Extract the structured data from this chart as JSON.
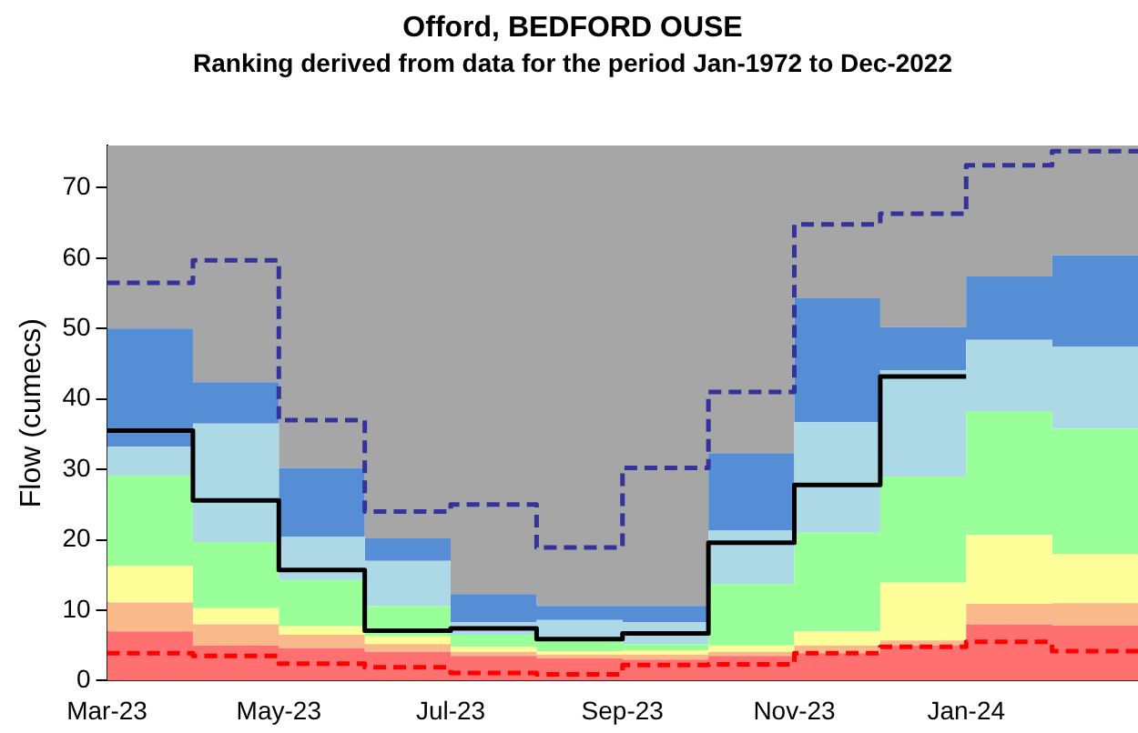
{
  "chart_data": {
    "type": "area",
    "title": "Offord, BEDFORD OUSE",
    "subtitle": "Ranking derived from data for the period Jan-1972 to Dec-2022",
    "ylabel": "Flow (cumecs)",
    "x": [
      "2023-03",
      "2023-04",
      "2023-05",
      "2023-06",
      "2023-07",
      "2023-08",
      "2023-09",
      "2023-10",
      "2023-11",
      "2023-12",
      "2024-01",
      "2024-02"
    ],
    "xlim": [
      "2023-03",
      "2024-03"
    ],
    "xticks": [
      {
        "value": "2023-03",
        "label": "Mar-23"
      },
      {
        "value": "2023-05",
        "label": "May-23"
      },
      {
        "value": "2023-07",
        "label": "Jul-23"
      },
      {
        "value": "2023-09",
        "label": "Sep-23"
      },
      {
        "value": "2023-11",
        "label": "Nov-23"
      },
      {
        "value": "2024-01",
        "label": "Jan-24"
      }
    ],
    "ylim": [
      0,
      76
    ],
    "yticks": [
      0,
      10,
      20,
      30,
      40,
      50,
      60,
      70
    ],
    "stacked": true,
    "grid": false,
    "legend": false,
    "marker": "none",
    "series": [
      {
        "color": "#ff7070",
        "values": [
          7.0,
          5.0,
          4.6,
          4.1,
          3.5,
          3.2,
          3.0,
          3.5,
          3.9,
          5.0,
          8.0,
          7.8
        ]
      },
      {
        "color": "#f9b98a",
        "values": [
          4.1,
          3.0,
          1.9,
          1.1,
          0.6,
          0.5,
          0.7,
          0.6,
          1.1,
          0.7,
          2.9,
          3.2
        ]
      },
      {
        "color": "#ffff99",
        "values": [
          5.2,
          2.3,
          1.2,
          1.1,
          0.7,
          0.5,
          0.6,
          0.9,
          2.0,
          8.2,
          9.8,
          7.0
        ]
      },
      {
        "color": "#99ff99",
        "values": [
          12.8,
          9.4,
          6.6,
          4.3,
          1.7,
          1.9,
          0.9,
          8.7,
          14.0,
          15.1,
          17.6,
          17.8
        ]
      },
      {
        "color": "#add8e6",
        "values": [
          4.1,
          16.8,
          6.1,
          6.4,
          1.8,
          2.5,
          3.1,
          7.6,
          15.7,
          15.1,
          10.1,
          11.6
        ]
      },
      {
        "color": "#558ed5",
        "values": [
          16.8,
          5.9,
          9.8,
          3.2,
          4.0,
          2.0,
          2.3,
          11.0,
          17.6,
          6.1,
          9.0,
          13.0
        ]
      },
      {
        "color": "#a6a6a6",
        "values": [
          26.0,
          33.6,
          45.8,
          55.8,
          63.7,
          65.4,
          65.4,
          43.7,
          21.7,
          25.8,
          18.6,
          15.6
        ]
      },
      {
        "type": "step",
        "color": "#000000",
        "line_style": "solid",
        "x": [
          "2023-03",
          "2023-04",
          "2023-05",
          "2023-06",
          "2023-07",
          "2023-08",
          "2023-09",
          "2023-10",
          "2023-11",
          "2023-12",
          "2024-01"
        ],
        "values": [
          35.5,
          25.6,
          15.7,
          7.1,
          7.4,
          5.9,
          6.7,
          19.6,
          27.8,
          43.2,
          43.2
        ]
      },
      {
        "type": "step",
        "color": "#333399",
        "line_style": "dashed",
        "values": [
          56.5,
          59.7,
          37.0,
          24.0,
          25.0,
          18.9,
          30.2,
          41.0,
          64.8,
          66.3,
          73.2,
          75.2
        ]
      },
      {
        "type": "step",
        "color": "#ff0000",
        "line_style": "dashed",
        "values": [
          3.9,
          3.5,
          2.4,
          1.9,
          1.1,
          0.9,
          2.2,
          2.3,
          3.9,
          4.8,
          5.5,
          4.2
        ]
      }
    ]
  }
}
